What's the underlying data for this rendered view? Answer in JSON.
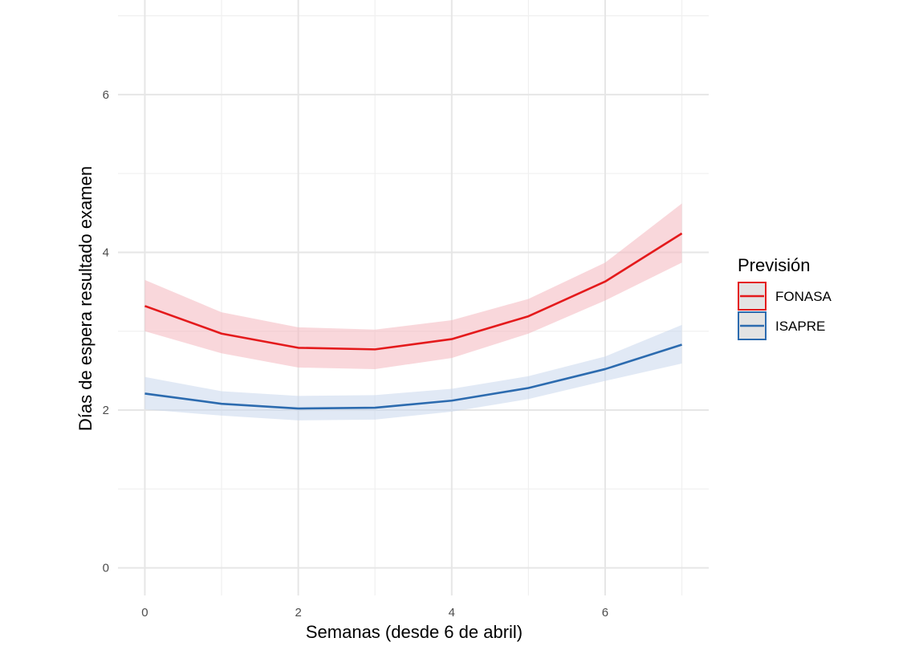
{
  "chart_data": {
    "type": "line",
    "xlabel": "Semanas (desde 6 de abril)",
    "ylabel": "Días de espera resultado examen",
    "xlim": [
      -0.35,
      7.35
    ],
    "ylim": [
      -0.35,
      7.2
    ],
    "x_ticks": [
      0,
      2,
      4,
      6
    ],
    "x_tick_labels": [
      "0",
      "2",
      "4",
      "6"
    ],
    "x_minor_ticks": [
      1,
      3,
      5,
      7
    ],
    "y_ticks": [
      0,
      2,
      4,
      6
    ],
    "y_tick_labels": [
      "0",
      "2",
      "4",
      "6"
    ],
    "y_minor_ticks": [
      1,
      3,
      5,
      7
    ],
    "grid": true,
    "legend": {
      "title": "Previsión",
      "position": "right"
    },
    "x": [
      0,
      1,
      2,
      3,
      4,
      5,
      6,
      7
    ],
    "series": [
      {
        "name": "FONASA",
        "color": "#E41A1C",
        "fill": "#F4B6BE",
        "values": [
          3.32,
          2.97,
          2.79,
          2.77,
          2.9,
          3.19,
          3.63,
          4.24
        ],
        "lower": [
          3.0,
          2.72,
          2.54,
          2.52,
          2.66,
          2.97,
          3.39,
          3.87
        ],
        "upper": [
          3.65,
          3.24,
          3.05,
          3.02,
          3.14,
          3.41,
          3.87,
          4.62
        ]
      },
      {
        "name": "ISAPRE",
        "color": "#2C6BAF",
        "fill": "#C9D7EC",
        "values": [
          2.21,
          2.08,
          2.02,
          2.03,
          2.12,
          2.28,
          2.52,
          2.83
        ],
        "lower": [
          2.01,
          1.93,
          1.87,
          1.88,
          1.98,
          2.14,
          2.37,
          2.59
        ],
        "upper": [
          2.42,
          2.24,
          2.18,
          2.19,
          2.27,
          2.43,
          2.68,
          3.08
        ]
      }
    ]
  }
}
